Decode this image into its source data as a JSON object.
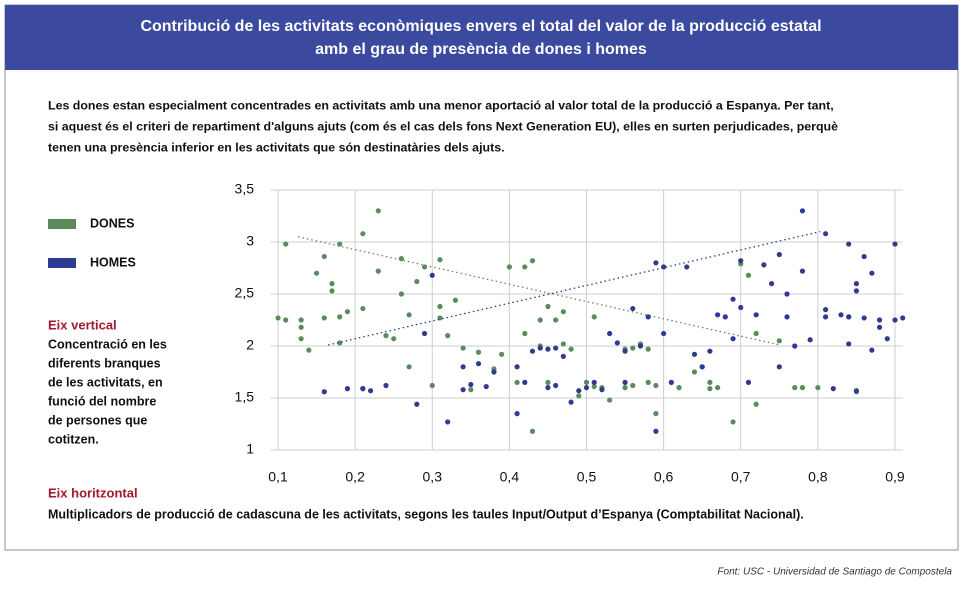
{
  "header": {
    "title_lines": [
      "Contribució de les activitats econòmiques envers el total del valor de la producció estatal",
      "amb el grau de presència de dones i homes"
    ]
  },
  "intro": {
    "lines": [
      "Les dones estan especialment concentrades en activitats amb una menor aportació al valor total de la producció a Espanya. Per tant,",
      "si aquest és el criteri de repartiment d'alguns ajuts (com és el cas dels fons Next Generation EU), elles en surten perjudicades, perquè",
      "tenen una presència inferior en les activitats que són destinatàries dels ajuts."
    ]
  },
  "axis_notes": {
    "vertical_title": "Eix vertical",
    "vertical_lines": [
      "Concentració en les",
      "diferents branques",
      "de les activitats, en",
      "funció del nombre",
      "de persones que",
      "cotitzen."
    ],
    "horizontal_title": "Eix horitzontal",
    "horizontal_text": "Multiplicadors de producció de cadascuna de les activitats, segons les taules Input/Output d’Espanya (Comptabilitat Nacional)."
  },
  "source": "Font: USC - Universidad de Santiago de Compostela",
  "chart_data": {
    "type": "scatter",
    "grid": true,
    "xlim": [
      0.09,
      0.91
    ],
    "ylim": [
      1,
      3.5
    ],
    "xticks": [
      {
        "value": 0.1,
        "label": "0,1"
      },
      {
        "value": 0.2,
        "label": "0,2"
      },
      {
        "value": 0.3,
        "label": "0,3"
      },
      {
        "value": 0.4,
        "label": "0,4"
      },
      {
        "value": 0.5,
        "label": "0,5"
      },
      {
        "value": 0.6,
        "label": "0,6"
      },
      {
        "value": 0.7,
        "label": "0,7"
      },
      {
        "value": 0.8,
        "label": "0,8"
      },
      {
        "value": 0.9,
        "label": "0,9"
      }
    ],
    "yticks": [
      1,
      {
        "value": 1.5,
        "label": "1,5"
      },
      2,
      {
        "value": 2.5,
        "label": "2,5"
      },
      3,
      {
        "value": 3.5,
        "label": "3,5"
      }
    ],
    "series": [
      {
        "name": "DONES",
        "color": "#5b8b5d",
        "x": [
          0.1,
          0.11,
          0.11,
          0.13,
          0.13,
          0.13,
          0.14,
          0.15,
          0.16,
          0.16,
          0.17,
          0.17,
          0.18,
          0.18,
          0.18,
          0.19,
          0.21,
          0.21,
          0.21,
          0.23,
          0.23,
          0.24,
          0.25,
          0.26,
          0.26,
          0.27,
          0.27,
          0.28,
          0.29,
          0.3,
          0.31,
          0.31,
          0.31,
          0.32,
          0.33,
          0.34,
          0.35,
          0.36,
          0.38,
          0.39,
          0.4,
          0.41,
          0.42,
          0.42,
          0.43,
          0.43,
          0.44,
          0.44,
          0.45,
          0.45,
          0.46,
          0.47,
          0.47,
          0.48,
          0.49,
          0.5,
          0.51,
          0.51,
          0.52,
          0.53,
          0.55,
          0.55,
          0.56,
          0.56,
          0.57,
          0.58,
          0.58,
          0.59,
          0.59,
          0.62,
          0.64,
          0.65,
          0.66,
          0.66,
          0.67,
          0.69,
          0.7,
          0.71,
          0.72,
          0.72,
          0.75,
          0.77,
          0.78,
          0.8,
          0.84,
          0.85
        ],
        "values": [
          2.27,
          2.25,
          2.98,
          2.07,
          2.18,
          2.25,
          1.96,
          2.7,
          2.86,
          2.27,
          2.6,
          2.53,
          2.98,
          2.03,
          2.28,
          2.33,
          1.59,
          2.36,
          3.08,
          3.3,
          2.72,
          2.1,
          2.07,
          2.84,
          2.5,
          1.8,
          2.3,
          2.62,
          2.76,
          1.62,
          2.27,
          2.38,
          2.83,
          2.1,
          2.44,
          1.98,
          1.58,
          1.94,
          1.78,
          1.92,
          2.76,
          1.65,
          2.76,
          2.12,
          2.82,
          1.18,
          2.0,
          2.25,
          2.38,
          1.65,
          2.25,
          2.33,
          2.02,
          1.97,
          1.52,
          1.65,
          2.28,
          1.61,
          1.6,
          1.48,
          1.97,
          1.6,
          1.98,
          1.62,
          2.02,
          1.65,
          1.97,
          1.35,
          1.62,
          1.6,
          1.75,
          1.8,
          1.59,
          1.65,
          1.6,
          1.27,
          2.79,
          2.68,
          2.12,
          1.44,
          2.05,
          1.6,
          1.6,
          1.6,
          2.28,
          1.56
        ],
        "trend": {
          "x": [
            0.126,
            0.751
          ],
          "values": [
            3.05,
            2.01
          ]
        }
      },
      {
        "name": "HOMES",
        "color": "#2f3b91",
        "x": [
          0.16,
          0.19,
          0.21,
          0.22,
          0.24,
          0.28,
          0.29,
          0.3,
          0.32,
          0.34,
          0.34,
          0.35,
          0.36,
          0.37,
          0.38,
          0.41,
          0.41,
          0.42,
          0.43,
          0.44,
          0.45,
          0.45,
          0.46,
          0.46,
          0.47,
          0.48,
          0.49,
          0.5,
          0.51,
          0.52,
          0.53,
          0.54,
          0.55,
          0.55,
          0.56,
          0.57,
          0.58,
          0.59,
          0.59,
          0.6,
          0.6,
          0.61,
          0.63,
          0.64,
          0.65,
          0.66,
          0.67,
          0.68,
          0.69,
          0.69,
          0.7,
          0.7,
          0.71,
          0.72,
          0.73,
          0.74,
          0.75,
          0.75,
          0.76,
          0.76,
          0.77,
          0.78,
          0.78,
          0.79,
          0.81,
          0.81,
          0.81,
          0.83,
          0.84,
          0.84,
          0.84,
          0.85,
          0.85,
          0.86,
          0.86,
          0.87,
          0.87,
          0.88,
          0.88,
          0.89,
          0.9,
          0.9,
          0.91,
          0.82,
          0.85
        ],
        "values": [
          1.56,
          1.59,
          1.59,
          1.57,
          1.62,
          1.44,
          2.12,
          2.68,
          1.27,
          1.8,
          1.58,
          1.63,
          1.83,
          1.61,
          1.75,
          1.35,
          1.8,
          1.65,
          1.95,
          1.98,
          1.6,
          1.97,
          1.62,
          1.98,
          1.9,
          1.46,
          1.57,
          1.6,
          1.65,
          1.58,
          2.12,
          2.03,
          1.95,
          1.65,
          2.36,
          2.0,
          2.28,
          1.18,
          2.8,
          2.76,
          2.12,
          1.65,
          2.76,
          1.92,
          1.8,
          1.95,
          2.3,
          2.28,
          2.45,
          2.07,
          2.82,
          2.37,
          1.65,
          2.3,
          2.78,
          2.6,
          1.8,
          2.88,
          2.5,
          2.28,
          2.0,
          3.3,
          2.72,
          2.06,
          3.08,
          2.35,
          2.28,
          2.3,
          2.28,
          2.98,
          2.02,
          2.6,
          2.53,
          2.86,
          2.27,
          2.7,
          1.96,
          2.18,
          2.25,
          2.07,
          2.98,
          2.25,
          2.27,
          1.59,
          1.57
        ],
        "trend": {
          "x": [
            0.165,
            0.803
          ],
          "values": [
            2.01,
            3.1
          ]
        }
      }
    ]
  }
}
